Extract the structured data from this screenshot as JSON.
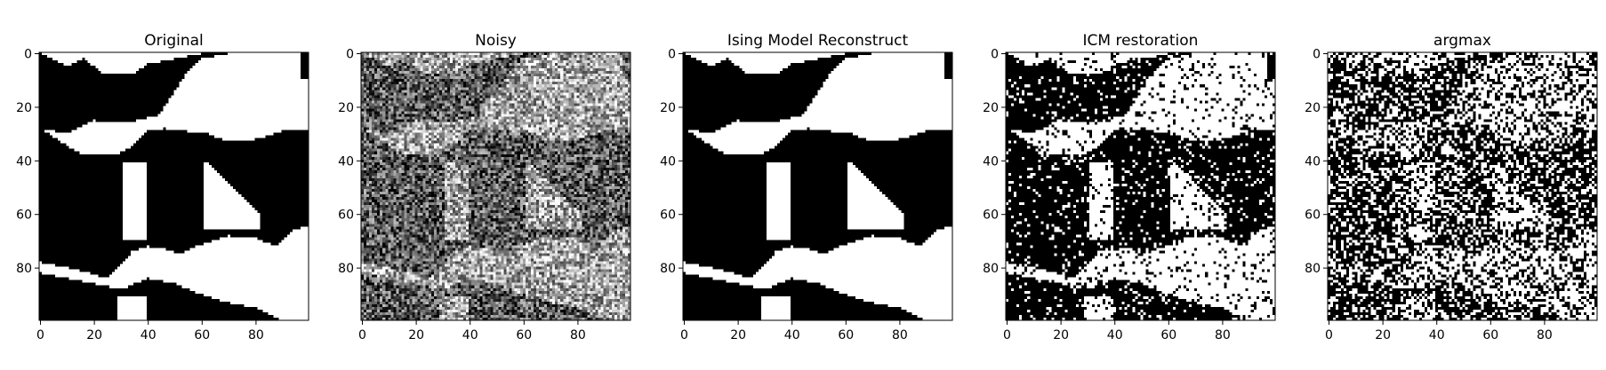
{
  "chart_data": [
    {
      "type": "heatmap",
      "title": "Original",
      "colormap": "gray",
      "image_size": [
        100,
        100
      ],
      "xlim": [
        0,
        100
      ],
      "ylim": [
        100,
        0
      ],
      "xticks": [
        0,
        20,
        40,
        60,
        80
      ],
      "yticks": [
        0,
        20,
        40,
        60,
        80
      ],
      "xlabel": "",
      "ylabel": "",
      "grid": false
    },
    {
      "type": "heatmap",
      "title": "Noisy",
      "colormap": "gray",
      "image_size": [
        100,
        100
      ],
      "xlim": [
        0,
        100
      ],
      "ylim": [
        100,
        0
      ],
      "xticks": [
        0,
        20,
        40,
        60,
        80
      ],
      "yticks": [
        0,
        20,
        40,
        60,
        80
      ],
      "xlabel": "",
      "ylabel": "",
      "grid": false
    },
    {
      "type": "heatmap",
      "title": "Ising Model Reconstruct",
      "colormap": "gray",
      "image_size": [
        100,
        100
      ],
      "xlim": [
        0,
        100
      ],
      "ylim": [
        100,
        0
      ],
      "xticks": [
        0,
        20,
        40,
        60,
        80
      ],
      "yticks": [
        0,
        20,
        40,
        60,
        80
      ],
      "xlabel": "",
      "ylabel": "",
      "grid": false
    },
    {
      "type": "heatmap",
      "title": "ICM restoration",
      "colormap": "gray",
      "image_size": [
        100,
        100
      ],
      "xlim": [
        0,
        100
      ],
      "ylim": [
        100,
        0
      ],
      "xticks": [
        0,
        20,
        40,
        60,
        80
      ],
      "yticks": [
        0,
        20,
        40,
        60,
        80
      ],
      "xlabel": "",
      "ylabel": "",
      "grid": false
    },
    {
      "type": "heatmap",
      "title": "argmax",
      "colormap": "gray",
      "image_size": [
        100,
        100
      ],
      "xlim": [
        0,
        100
      ],
      "ylim": [
        100,
        0
      ],
      "xticks": [
        0,
        20,
        40,
        60,
        80
      ],
      "yticks": [
        0,
        20,
        40,
        60,
        80
      ],
      "xlabel": "",
      "ylabel": "",
      "grid": false
    }
  ]
}
